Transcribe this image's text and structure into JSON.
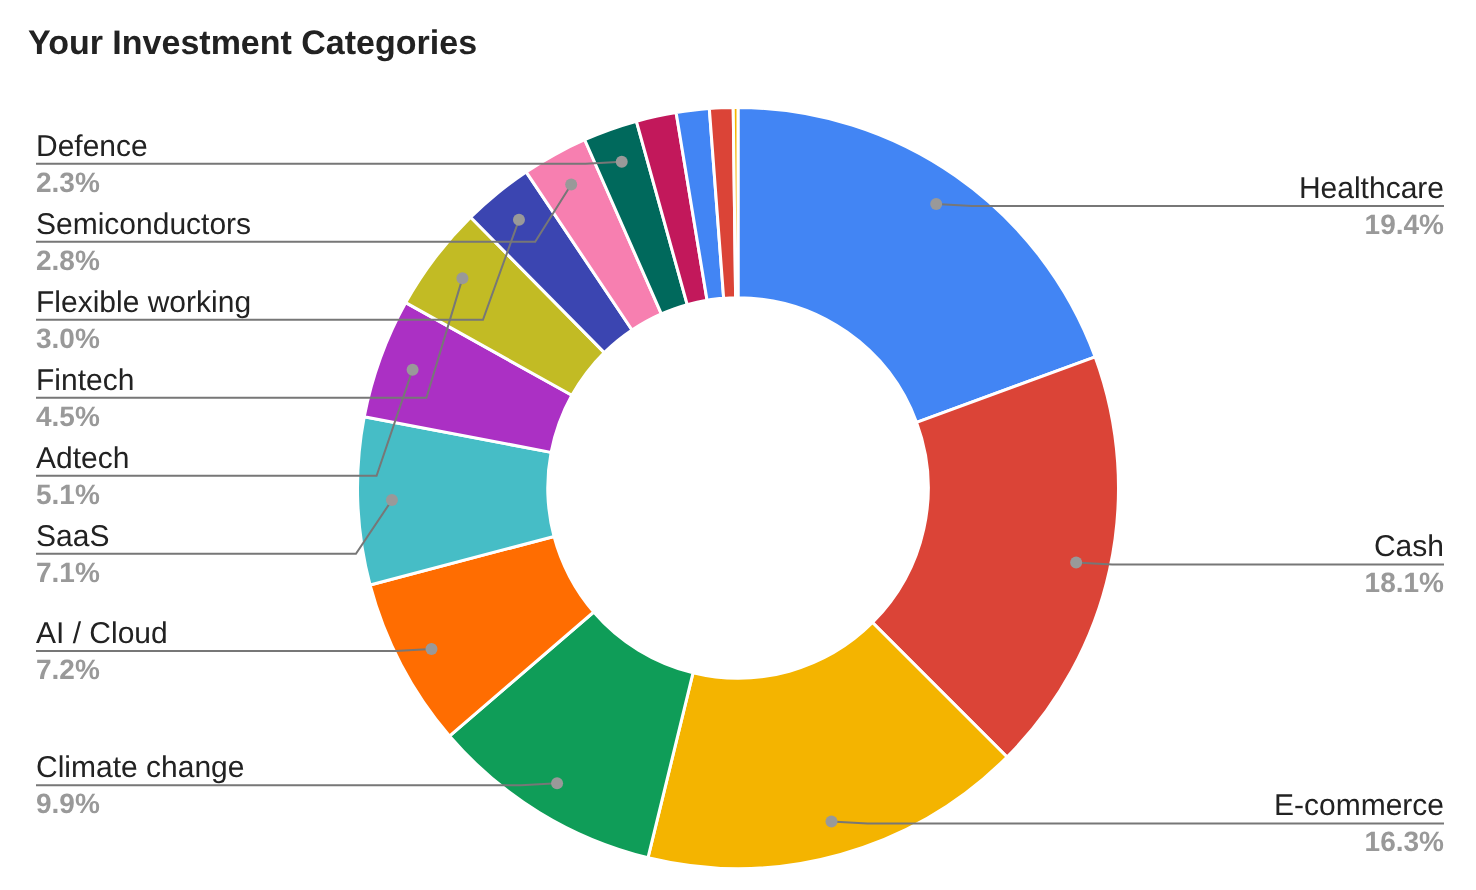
{
  "chart_data": {
    "type": "donut",
    "title": "Your Investment Categories",
    "categories": [
      "Healthcare",
      "Cash",
      "E-commerce",
      "Climate change",
      "AI / Cloud",
      "SaaS",
      "Adtech",
      "Fintech",
      "Flexible working",
      "Semiconductors",
      "Defence",
      null,
      null,
      null,
      null
    ],
    "values": [
      19.4,
      18.1,
      16.3,
      9.9,
      7.2,
      7.1,
      5.1,
      4.5,
      3.0,
      2.8,
      2.3,
      1.7,
      1.4,
      1.0,
      0.2
    ],
    "value_labels": [
      "19.4%",
      "18.1%",
      "16.3%",
      "9.9%",
      "7.2%",
      "7.1%",
      "5.1%",
      "4.5%",
      "3.0%",
      "2.8%",
      "2.3%",
      null,
      null,
      null,
      null
    ],
    "colors": [
      "#4285f4",
      "#db4437",
      "#f4b400",
      "#0f9d58",
      "#ff6d01",
      "#46bdc6",
      "#ab30c4",
      "#c2bb24",
      "#3b45b1",
      "#f77fb0",
      "#00695c",
      "#c2185b",
      "#4285f4",
      "#db4437",
      "#f4b400"
    ],
    "legend": false
  }
}
